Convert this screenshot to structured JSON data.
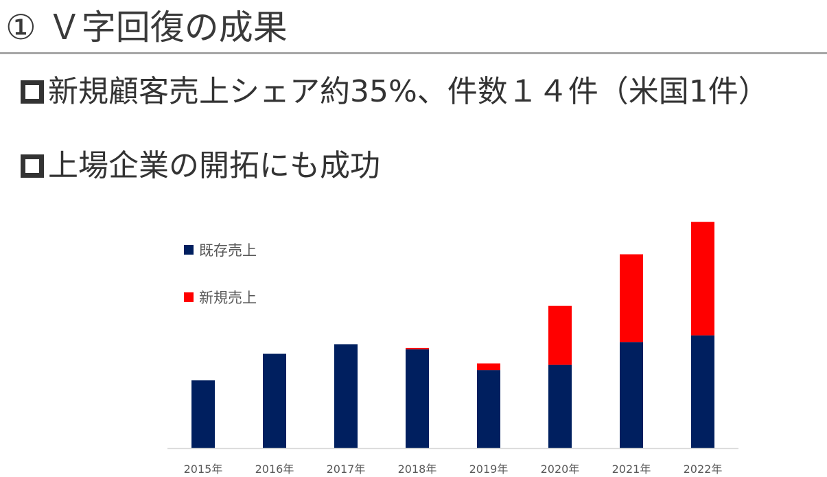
{
  "slide": {
    "title": "① Ｖ字回復の成果",
    "bullets": [
      "新規顧客売上シェア約35%、件数１４件（米国1件）",
      "上場企業の開拓にも成功"
    ]
  },
  "colors": {
    "existing": "#001f5f",
    "new": "#ff0000",
    "axis": "#d9d9d9",
    "title_rule": "#a6a6a6"
  },
  "chart_data": {
    "type": "bar",
    "stacked": true,
    "categories": [
      "2015年",
      "2016年",
      "2017年",
      "2018年",
      "2019年",
      "2020年",
      "2021年",
      "2022年"
    ],
    "series": [
      {
        "name": "既存売上",
        "values": [
          92,
          128,
          141,
          134,
          106,
          113,
          144,
          153
        ]
      },
      {
        "name": "新規売上",
        "values": [
          0,
          0,
          0,
          2,
          9,
          80,
          119,
          154
        ]
      }
    ],
    "ylim": [
      0,
      310
    ],
    "grid": false,
    "legend": "top-left"
  }
}
